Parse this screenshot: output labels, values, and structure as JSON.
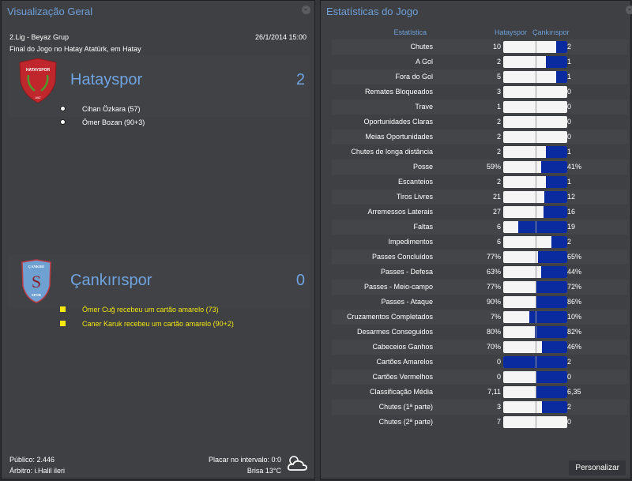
{
  "overview": {
    "title": "Visualização Geral",
    "competition": "2.Lig - Beyaz Grup",
    "datetime": "26/1/2014 15:00",
    "venue_text": "Final do Jogo no Hatay Atatürk, em Hatay",
    "home": {
      "name": "Hatayspor",
      "score": "2",
      "crest_colors": {
        "fill": "#c0272d",
        "leaves": "#4e9a2a",
        "text": "#ffffff"
      },
      "events": [
        {
          "icon": "ball-icon",
          "text": "Cihan Özkara (57)"
        },
        {
          "icon": "ball-icon",
          "text": "Ömer Bozan (90+3)"
        }
      ]
    },
    "away": {
      "name": "Çankırıspor",
      "score": "0",
      "crest_colors": {
        "fill": "#6ea1d2",
        "border": "#c03a44",
        "letters": "#8a1f2c"
      },
      "events": [
        {
          "icon": "yellow-card-icon",
          "text": "Ömer Cuğ recebeu um cartão amarelo (73)"
        },
        {
          "icon": "yellow-card-icon",
          "text": "Caner Karuk recebeu um cartão amarelo (90+2)"
        }
      ]
    },
    "footer": {
      "attendance": "Público: 2.446",
      "referee": "Árbitro: i.Halil ileri",
      "halftime": "Placar no intervalo: 0:0",
      "weather": "Brisa 13°C",
      "weather_icon": "cloudy-sun-icon"
    }
  },
  "stats": {
    "title": "Estatísticas do Jogo",
    "col_stat": "Estatística",
    "col_home": "Hatayspor",
    "col_away": "Çankırıspor",
    "home_color": "#f5f5f5",
    "away_color": "#0a2aa0",
    "rows": [
      {
        "label": "Chutes",
        "home": "10",
        "away": "2",
        "away_pct": 17
      },
      {
        "label": "A Gol",
        "home": "2",
        "away": "1",
        "away_pct": 33
      },
      {
        "label": "Fora do Gol",
        "home": "5",
        "away": "1",
        "away_pct": 17
      },
      {
        "label": "Remates Bloqueados",
        "home": "3",
        "away": "0",
        "away_pct": 0
      },
      {
        "label": "Trave",
        "home": "1",
        "away": "0",
        "away_pct": 0
      },
      {
        "label": "Oportunidades Claras",
        "home": "2",
        "away": "0",
        "away_pct": 0
      },
      {
        "label": "Meias Oportunidades",
        "home": "2",
        "away": "0",
        "away_pct": 0
      },
      {
        "label": "Chutes de longa distância",
        "home": "2",
        "away": "1",
        "away_pct": 33
      },
      {
        "label": "Posse",
        "home": "59%",
        "away": "41%",
        "away_pct": 41
      },
      {
        "label": "Escanteios",
        "home": "2",
        "away": "1",
        "away_pct": 33
      },
      {
        "label": "Tiros Livres",
        "home": "21",
        "away": "12",
        "away_pct": 36
      },
      {
        "label": "Arremessos Laterais",
        "home": "27",
        "away": "16",
        "away_pct": 37
      },
      {
        "label": "Faltas",
        "home": "6",
        "away": "19",
        "away_pct": 76
      },
      {
        "label": "Impedimentos",
        "home": "6",
        "away": "2",
        "away_pct": 25
      },
      {
        "label": "Passes Concluídos",
        "home": "77%",
        "away": "65%",
        "away_pct": 46
      },
      {
        "label": "Passes - Defesa",
        "home": "63%",
        "away": "44%",
        "away_pct": 41
      },
      {
        "label": "Passes - Meio-campo",
        "home": "77%",
        "away": "72%",
        "away_pct": 48
      },
      {
        "label": "Passes - Ataque",
        "home": "90%",
        "away": "86%",
        "away_pct": 49
      },
      {
        "label": "Cruzamentos Completados",
        "home": "7%",
        "away": "10%",
        "away_pct": 59
      },
      {
        "label": "Desarmes Conseguidos",
        "home": "80%",
        "away": "82%",
        "away_pct": 51
      },
      {
        "label": "Cabeceios Ganhos",
        "home": "70%",
        "away": "46%",
        "away_pct": 40
      },
      {
        "label": "Cartões Amarelos",
        "home": "0",
        "away": "2",
        "away_pct": 100
      },
      {
        "label": "Cartões Vermelhos",
        "home": "0",
        "away": "0",
        "away_pct": 50
      },
      {
        "label": "Classificação Média",
        "home": "7,11",
        "away": "6,35",
        "away_pct": 48
      },
      {
        "label": "Chutes (1ª parte)",
        "home": "3",
        "away": "2",
        "away_pct": 40
      },
      {
        "label": "Chutes (2ª parte)",
        "home": "7",
        "away": "0",
        "away_pct": 0
      }
    ],
    "customize_label": "Personalizar"
  }
}
